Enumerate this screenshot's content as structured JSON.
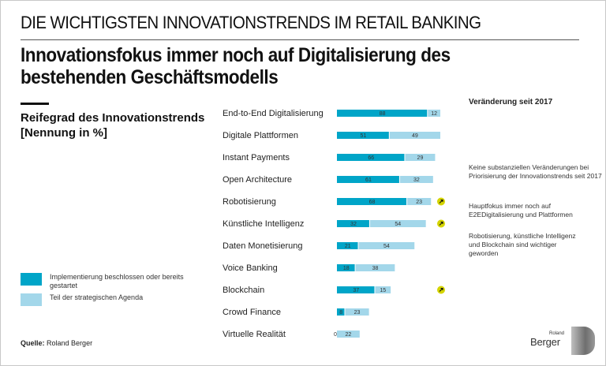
{
  "header": {
    "kicker": "DIE WICHTIGSTEN INNOVATIONSTRENDS IM RETAIL BANKING",
    "headline_line1": "Innovationsfokus immer noch auf Digitalisierung des",
    "headline_line2": "bestehenden Geschäftsmodells"
  },
  "subtitle": {
    "line1": "Reifegrad des Innovationstrends",
    "line2": "[Nennung in %]"
  },
  "legend": {
    "items": [
      {
        "label": "Implementierung beschlossen oder bereits gestartet",
        "color": "#00a5c8"
      },
      {
        "label": "Teil der strategischen Agenda",
        "color": "#a3d7ea"
      }
    ]
  },
  "source": {
    "prefix": "Quelle:",
    "text": "Roland Berger"
  },
  "side_panel": {
    "heading": "Veränderung seit 2017",
    "notes": [
      "Keine substanziellen Veränderungen bei Priorisierung der Innovationstrends seit 2017",
      "Hauptfokus immer noch auf E2EDigitalisierung und Plattformen",
      "Robotisierung, künstliche Intelligenz und Blockchain sind wichtiger geworden"
    ],
    "trend_icon_color": "#d4d400"
  },
  "logo": {
    "small": "Roland",
    "large": "Berger"
  },
  "chart_data": {
    "type": "bar",
    "orientation": "horizontal",
    "stacked": true,
    "title": "Reifegrad des Innovationstrends [Nennung in %]",
    "xlabel": "",
    "ylabel": "",
    "xlim": [
      0,
      100
    ],
    "grid": false,
    "legend_position": "bottom-left",
    "categories": [
      "End-to-End Digitalisierung",
      "Digitale Plattformen",
      "Instant Payments",
      "Open Architecture",
      "Robotisierung",
      "Künstliche Intelligenz",
      "Daten Monetisierung",
      "Voice Banking",
      "Blockchain",
      "Crowd Finance",
      "Virtuelle Realität"
    ],
    "series": [
      {
        "name": "Implementierung beschlossen oder bereits gestartet",
        "color": "#00a5c8",
        "values": [
          88,
          51,
          66,
          61,
          68,
          32,
          21,
          18,
          37,
          8,
          0
        ]
      },
      {
        "name": "Teil der strategischen Agenda",
        "color": "#a3d7ea",
        "values": [
          12,
          49,
          29,
          32,
          23,
          54,
          54,
          38,
          15,
          23,
          22
        ]
      }
    ],
    "trend_up_markers": [
      "Robotisierung",
      "Künstliche Intelligenz",
      "Blockchain"
    ]
  }
}
